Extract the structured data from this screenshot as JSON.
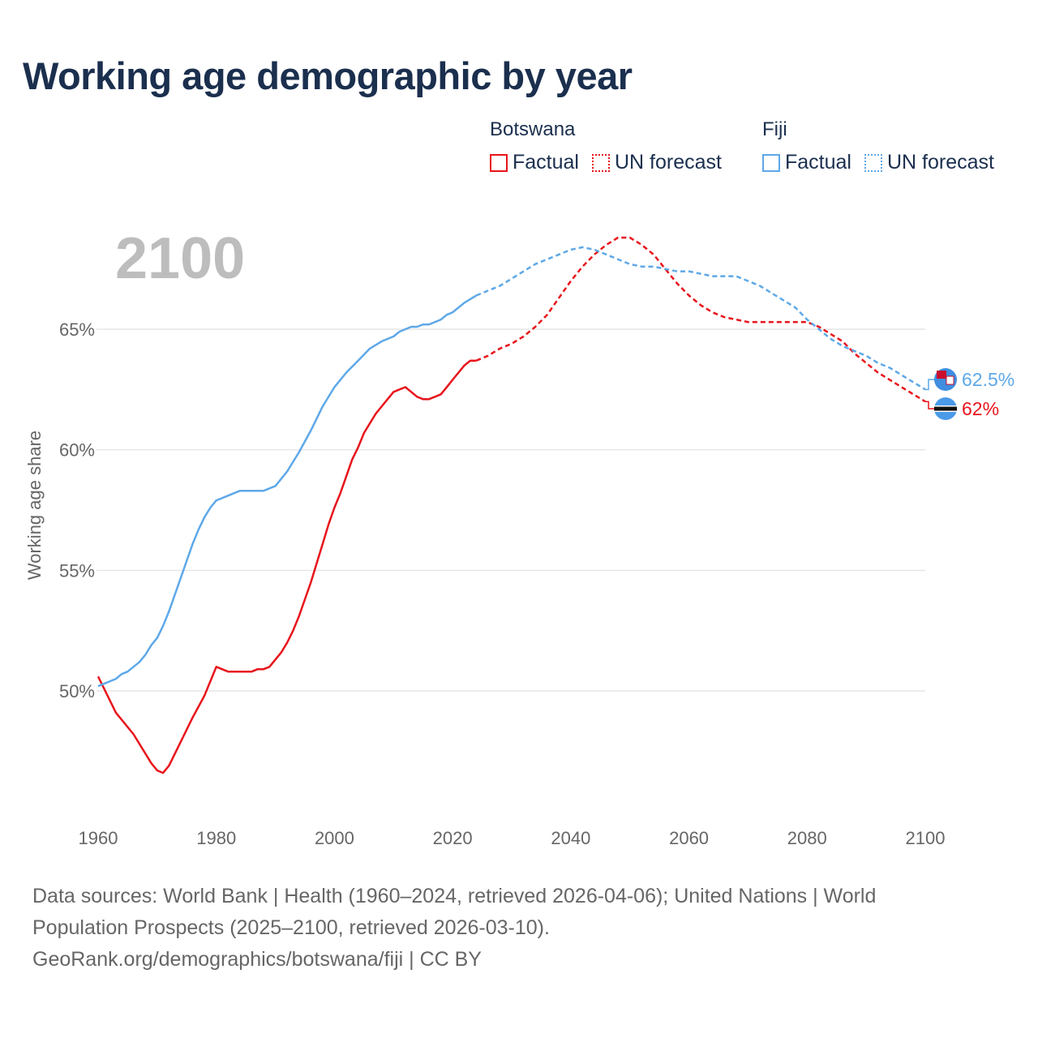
{
  "title": "Working age demographic by year",
  "legend": {
    "groups": [
      {
        "name": "Botswana",
        "color": "#e8141b",
        "factual_label": "Factual",
        "forecast_label": "UN forecast"
      },
      {
        "name": "Fiji",
        "color": "#5ea8e8",
        "factual_label": "Factual",
        "forecast_label": "UN forecast"
      }
    ]
  },
  "year_watermark": "2100",
  "footer": {
    "line1": "Data sources: World Bank | Health (1960–2024, retrieved 2026-04-06); United Nations | World",
    "line2": "Population Prospects (2025–2100, retrieved 2026-03-10).",
    "line3": "GeoRank.org/demographics/botswana/fiji | CC BY"
  },
  "chart_data": {
    "type": "line",
    "title": "Working age demographic by year",
    "ylabel": "Working age share",
    "xlabel": "",
    "xlim": [
      1960,
      2100
    ],
    "ylim": [
      46.5,
      68.0
    ],
    "x_ticks": [
      1960,
      1980,
      2000,
      2020,
      2040,
      2060,
      2080,
      2100
    ],
    "y_ticks": [
      50,
      55,
      60,
      65
    ],
    "y_tick_labels": [
      "50%",
      "55%",
      "60%",
      "65%"
    ],
    "grid": "horizontal",
    "factual_until": 2024,
    "series": [
      {
        "name": "Botswana",
        "color": "#e8141b",
        "end_label": "62%",
        "flag_icon": "botswana-flag-icon",
        "points": [
          [
            1960,
            50.6
          ],
          [
            1963,
            49.1
          ],
          [
            1966,
            48.2
          ],
          [
            1969,
            47.0
          ],
          [
            1970,
            46.7
          ],
          [
            1971,
            46.6
          ],
          [
            1972,
            46.9
          ],
          [
            1974,
            47.9
          ],
          [
            1976,
            48.9
          ],
          [
            1978,
            49.8
          ],
          [
            1979,
            50.4
          ],
          [
            1980,
            51.0
          ],
          [
            1982,
            50.8
          ],
          [
            1984,
            50.8
          ],
          [
            1986,
            50.8
          ],
          [
            1987,
            50.9
          ],
          [
            1988,
            50.9
          ],
          [
            1989,
            51.0
          ],
          [
            1990,
            51.3
          ],
          [
            1991,
            51.6
          ],
          [
            1992,
            52.0
          ],
          [
            1993,
            52.5
          ],
          [
            1994,
            53.1
          ],
          [
            1995,
            53.8
          ],
          [
            1996,
            54.5
          ],
          [
            1997,
            55.3
          ],
          [
            1998,
            56.1
          ],
          [
            1999,
            56.9
          ],
          [
            2000,
            57.6
          ],
          [
            2001,
            58.2
          ],
          [
            2002,
            58.9
          ],
          [
            2003,
            59.6
          ],
          [
            2004,
            60.1
          ],
          [
            2005,
            60.7
          ],
          [
            2006,
            61.1
          ],
          [
            2007,
            61.5
          ],
          [
            2008,
            61.8
          ],
          [
            2009,
            62.1
          ],
          [
            2010,
            62.4
          ],
          [
            2011,
            62.5
          ],
          [
            2012,
            62.6
          ],
          [
            2013,
            62.4
          ],
          [
            2014,
            62.2
          ],
          [
            2015,
            62.1
          ],
          [
            2016,
            62.1
          ],
          [
            2017,
            62.2
          ],
          [
            2018,
            62.3
          ],
          [
            2019,
            62.6
          ],
          [
            2020,
            62.9
          ],
          [
            2021,
            63.2
          ],
          [
            2022,
            63.5
          ],
          [
            2023,
            63.7
          ],
          [
            2024,
            63.7
          ],
          [
            2026,
            63.9
          ],
          [
            2028,
            64.2
          ],
          [
            2030,
            64.4
          ],
          [
            2032,
            64.7
          ],
          [
            2034,
            65.1
          ],
          [
            2036,
            65.6
          ],
          [
            2038,
            66.3
          ],
          [
            2040,
            67.0
          ],
          [
            2042,
            67.6
          ],
          [
            2044,
            68.1
          ],
          [
            2046,
            68.5
          ],
          [
            2048,
            68.8
          ],
          [
            2050,
            68.8
          ],
          [
            2052,
            68.5
          ],
          [
            2054,
            68.1
          ],
          [
            2056,
            67.5
          ],
          [
            2058,
            66.9
          ],
          [
            2060,
            66.4
          ],
          [
            2062,
            66.0
          ],
          [
            2064,
            65.7
          ],
          [
            2066,
            65.5
          ],
          [
            2068,
            65.4
          ],
          [
            2070,
            65.3
          ],
          [
            2072,
            65.3
          ],
          [
            2074,
            65.3
          ],
          [
            2076,
            65.3
          ],
          [
            2078,
            65.3
          ],
          [
            2080,
            65.3
          ],
          [
            2082,
            65.1
          ],
          [
            2084,
            64.8
          ],
          [
            2086,
            64.5
          ],
          [
            2088,
            64.0
          ],
          [
            2090,
            63.6
          ],
          [
            2092,
            63.2
          ],
          [
            2094,
            62.9
          ],
          [
            2096,
            62.6
          ],
          [
            2098,
            62.3
          ],
          [
            2100,
            62.0
          ]
        ]
      },
      {
        "name": "Fiji",
        "color": "#5ea8e8",
        "end_label": "62.5%",
        "flag_icon": "fiji-flag-icon",
        "points": [
          [
            1960,
            50.2
          ],
          [
            1963,
            50.5
          ],
          [
            1964,
            50.7
          ],
          [
            1965,
            50.8
          ],
          [
            1967,
            51.2
          ],
          [
            1968,
            51.5
          ],
          [
            1969,
            51.9
          ],
          [
            1970,
            52.2
          ],
          [
            1971,
            52.7
          ],
          [
            1972,
            53.3
          ],
          [
            1973,
            54.0
          ],
          [
            1974,
            54.7
          ],
          [
            1975,
            55.4
          ],
          [
            1976,
            56.1
          ],
          [
            1977,
            56.7
          ],
          [
            1978,
            57.2
          ],
          [
            1979,
            57.6
          ],
          [
            1980,
            57.9
          ],
          [
            1982,
            58.1
          ],
          [
            1984,
            58.3
          ],
          [
            1986,
            58.3
          ],
          [
            1988,
            58.3
          ],
          [
            1990,
            58.5
          ],
          [
            1992,
            59.1
          ],
          [
            1994,
            59.9
          ],
          [
            1996,
            60.8
          ],
          [
            1998,
            61.8
          ],
          [
            2000,
            62.6
          ],
          [
            2002,
            63.2
          ],
          [
            2004,
            63.7
          ],
          [
            2006,
            64.2
          ],
          [
            2008,
            64.5
          ],
          [
            2010,
            64.7
          ],
          [
            2011,
            64.9
          ],
          [
            2012,
            65.0
          ],
          [
            2013,
            65.1
          ],
          [
            2014,
            65.1
          ],
          [
            2015,
            65.2
          ],
          [
            2016,
            65.2
          ],
          [
            2018,
            65.4
          ],
          [
            2019,
            65.6
          ],
          [
            2020,
            65.7
          ],
          [
            2022,
            66.1
          ],
          [
            2024,
            66.4
          ],
          [
            2026,
            66.6
          ],
          [
            2028,
            66.8
          ],
          [
            2030,
            67.1
          ],
          [
            2032,
            67.4
          ],
          [
            2034,
            67.7
          ],
          [
            2036,
            67.9
          ],
          [
            2038,
            68.1
          ],
          [
            2040,
            68.3
          ],
          [
            2042,
            68.4
          ],
          [
            2044,
            68.3
          ],
          [
            2046,
            68.1
          ],
          [
            2048,
            67.9
          ],
          [
            2050,
            67.7
          ],
          [
            2052,
            67.6
          ],
          [
            2054,
            67.6
          ],
          [
            2056,
            67.5
          ],
          [
            2058,
            67.4
          ],
          [
            2060,
            67.4
          ],
          [
            2062,
            67.3
          ],
          [
            2064,
            67.2
          ],
          [
            2066,
            67.2
          ],
          [
            2068,
            67.2
          ],
          [
            2070,
            67.0
          ],
          [
            2072,
            66.8
          ],
          [
            2074,
            66.5
          ],
          [
            2076,
            66.2
          ],
          [
            2078,
            65.9
          ],
          [
            2080,
            65.4
          ],
          [
            2082,
            65.0
          ],
          [
            2084,
            64.6
          ],
          [
            2086,
            64.3
          ],
          [
            2088,
            64.1
          ],
          [
            2090,
            63.9
          ],
          [
            2092,
            63.6
          ],
          [
            2094,
            63.4
          ],
          [
            2096,
            63.1
          ],
          [
            2098,
            62.8
          ],
          [
            2100,
            62.5
          ]
        ]
      }
    ]
  }
}
